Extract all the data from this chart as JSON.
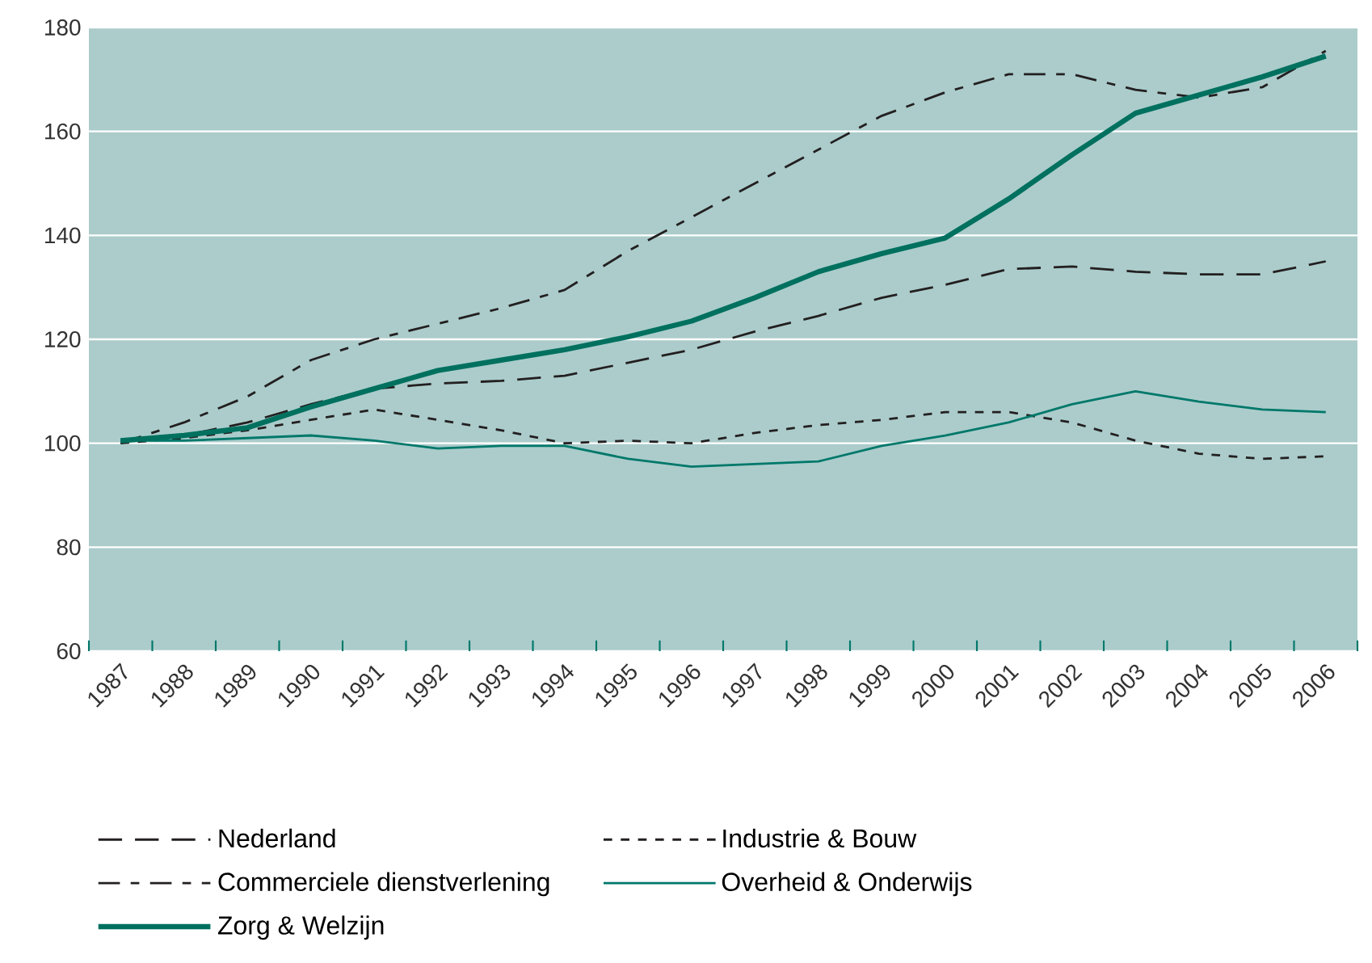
{
  "chart_data": {
    "type": "line",
    "categories": [
      "1987",
      "1988",
      "1989",
      "1990",
      "1991",
      "1992",
      "1993",
      "1994",
      "1995",
      "1996",
      "1997",
      "1998",
      "1999",
      "2000",
      "2001",
      "2002",
      "2003",
      "2004",
      "2005",
      "2006"
    ],
    "series": [
      {
        "name": "Nederland",
        "color": "#231f20",
        "line_style": "dashed",
        "values": [
          100.5,
          101.5,
          104,
          107.5,
          110.5,
          111.5,
          112,
          113,
          115.5,
          118,
          121.5,
          124.5,
          128,
          130.5,
          133.5,
          134,
          133,
          132.5,
          132.5,
          135
        ]
      },
      {
        "name": "Industrie & Bouw",
        "color": "#231f20",
        "line_style": "dotted",
        "values": [
          100,
          101,
          102.5,
          104.5,
          106.5,
          104.5,
          102.5,
          100,
          100.5,
          100,
          102,
          103.5,
          104.5,
          106,
          106,
          104,
          100.5,
          98,
          97,
          97.5
        ]
      },
      {
        "name": "Commerciele dienstverlening",
        "color": "#231f20",
        "line_style": "dashdot",
        "values": [
          100,
          104,
          109,
          116,
          120,
          123,
          126,
          129.5,
          137,
          143.5,
          150,
          156.5,
          163,
          167.5,
          171,
          171,
          168,
          166.5,
          168.5,
          175.5
        ]
      },
      {
        "name": "Overheid & Onderwijs",
        "color": "#00786a",
        "line_style": "solid",
        "values": [
          100.5,
          100.5,
          101,
          101.5,
          100.5,
          99,
          99.5,
          99.5,
          97,
          95.5,
          96,
          96.5,
          99.5,
          101.5,
          104,
          107.5,
          110,
          108,
          106.5,
          106
        ]
      },
      {
        "name": "Zorg & Welzijn",
        "color": "#00705f",
        "line_style": "solid",
        "values": [
          100.5,
          101.5,
          103,
          107,
          110.5,
          114,
          116,
          118,
          120.5,
          123.5,
          128,
          133,
          136.5,
          139.5,
          147,
          155.5,
          163.5,
          167,
          170.5,
          174.5
        ]
      }
    ],
    "ylim": [
      60,
      180
    ],
    "yticks": [
      60,
      80,
      100,
      120,
      140,
      160,
      180
    ],
    "grid": "y",
    "legend": "bottom",
    "marker": "none"
  }
}
